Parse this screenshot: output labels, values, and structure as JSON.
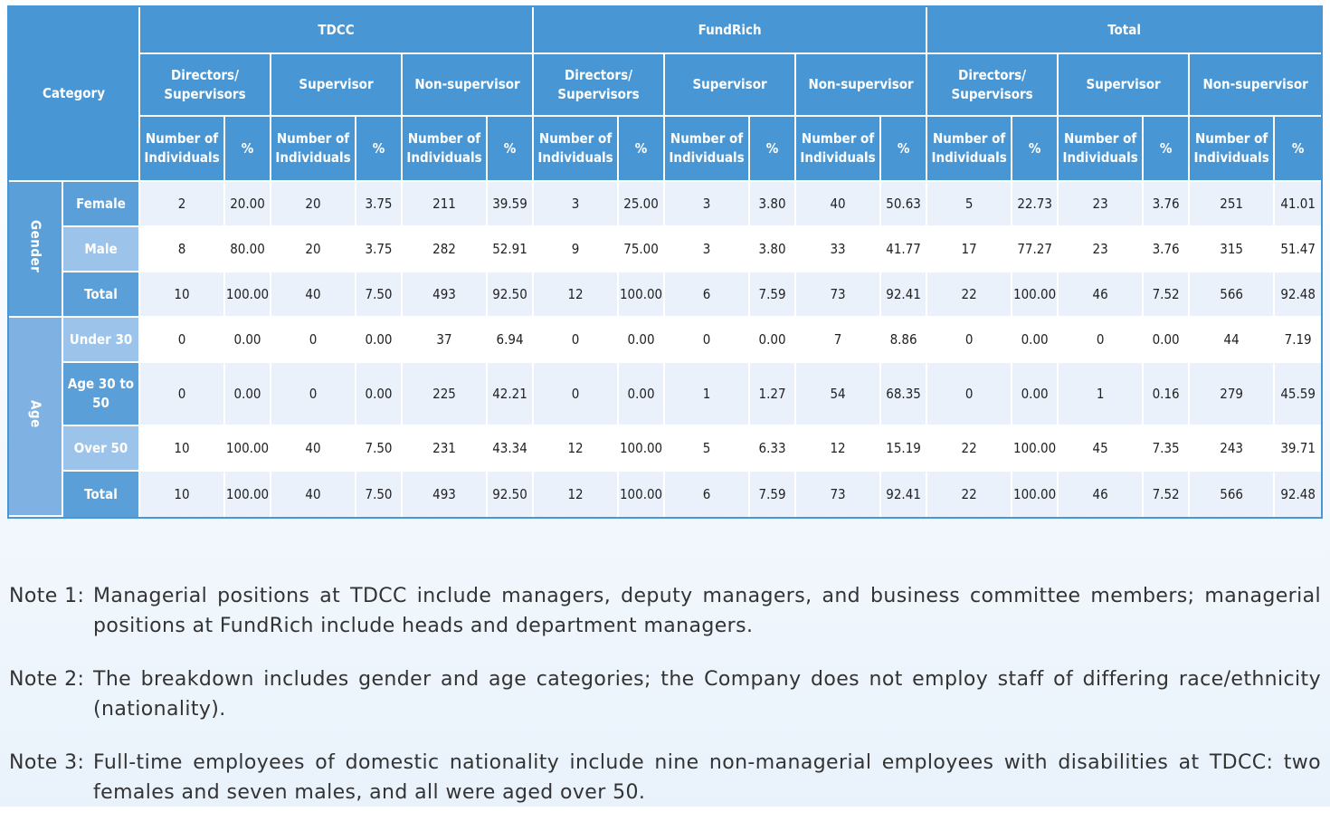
{
  "header": {
    "category": "Category",
    "groups": [
      "TDCC",
      "FundRich",
      "Total"
    ],
    "subgroups": [
      "Directors/ Supervisors",
      "Supervisor",
      "Non-supervisor"
    ],
    "count_label": "Number of Individuals",
    "pct_label": "%"
  },
  "sections": {
    "gender": "Gender",
    "age": "Age"
  },
  "rows": [
    {
      "label": "Female",
      "values": [
        "2",
        "20.00",
        "20",
        "3.75",
        "211",
        "39.59",
        "3",
        "25.00",
        "3",
        "3.80",
        "40",
        "50.63",
        "5",
        "22.73",
        "23",
        "3.76",
        "251",
        "41.01"
      ]
    },
    {
      "label": "Male",
      "values": [
        "8",
        "80.00",
        "20",
        "3.75",
        "282",
        "52.91",
        "9",
        "75.00",
        "3",
        "3.80",
        "33",
        "41.77",
        "17",
        "77.27",
        "23",
        "3.76",
        "315",
        "51.47"
      ]
    },
    {
      "label": "Total",
      "values": [
        "10",
        "100.00",
        "40",
        "7.50",
        "493",
        "92.50",
        "12",
        "100.00",
        "6",
        "7.59",
        "73",
        "92.41",
        "22",
        "100.00",
        "46",
        "7.52",
        "566",
        "92.48"
      ]
    },
    {
      "label": "Under 30",
      "values": [
        "0",
        "0.00",
        "0",
        "0.00",
        "37",
        "6.94",
        "0",
        "0.00",
        "0",
        "0.00",
        "7",
        "8.86",
        "0",
        "0.00",
        "0",
        "0.00",
        "44",
        "7.19"
      ]
    },
    {
      "label": "Age 30 to 50",
      "values": [
        "0",
        "0.00",
        "0",
        "0.00",
        "225",
        "42.21",
        "0",
        "0.00",
        "1",
        "1.27",
        "54",
        "68.35",
        "0",
        "0.00",
        "1",
        "0.16",
        "279",
        "45.59"
      ]
    },
    {
      "label": "Over 50",
      "values": [
        "10",
        "100.00",
        "40",
        "7.50",
        "231",
        "43.34",
        "12",
        "100.00",
        "5",
        "6.33",
        "12",
        "15.19",
        "22",
        "100.00",
        "45",
        "7.35",
        "243",
        "39.71"
      ]
    },
    {
      "label": "Total",
      "values": [
        "10",
        "100.00",
        "40",
        "7.50",
        "493",
        "92.50",
        "12",
        "100.00",
        "6",
        "7.59",
        "73",
        "92.41",
        "22",
        "100.00",
        "46",
        "7.52",
        "566",
        "92.48"
      ]
    }
  ],
  "notes": [
    {
      "label": "Note 1:",
      "text": "Managerial positions at TDCC include managers, deputy managers, and business committee members; managerial positions at FundRich include heads and department managers."
    },
    {
      "label": "Note 2:",
      "text": "The breakdown includes gender and age categories; the Company does not employ staff of differing race/ethnicity (nationality)."
    },
    {
      "label": "Note 3:",
      "text": "Full-time employees of domestic nationality include nine non-managerial employees with disabilities at TDCC: two females and seven males, and all were aged over 50."
    }
  ],
  "colors": {
    "header_blue": "#4896d3",
    "row_light": "#eaf1fa",
    "label_light": "#9cc3ea"
  }
}
